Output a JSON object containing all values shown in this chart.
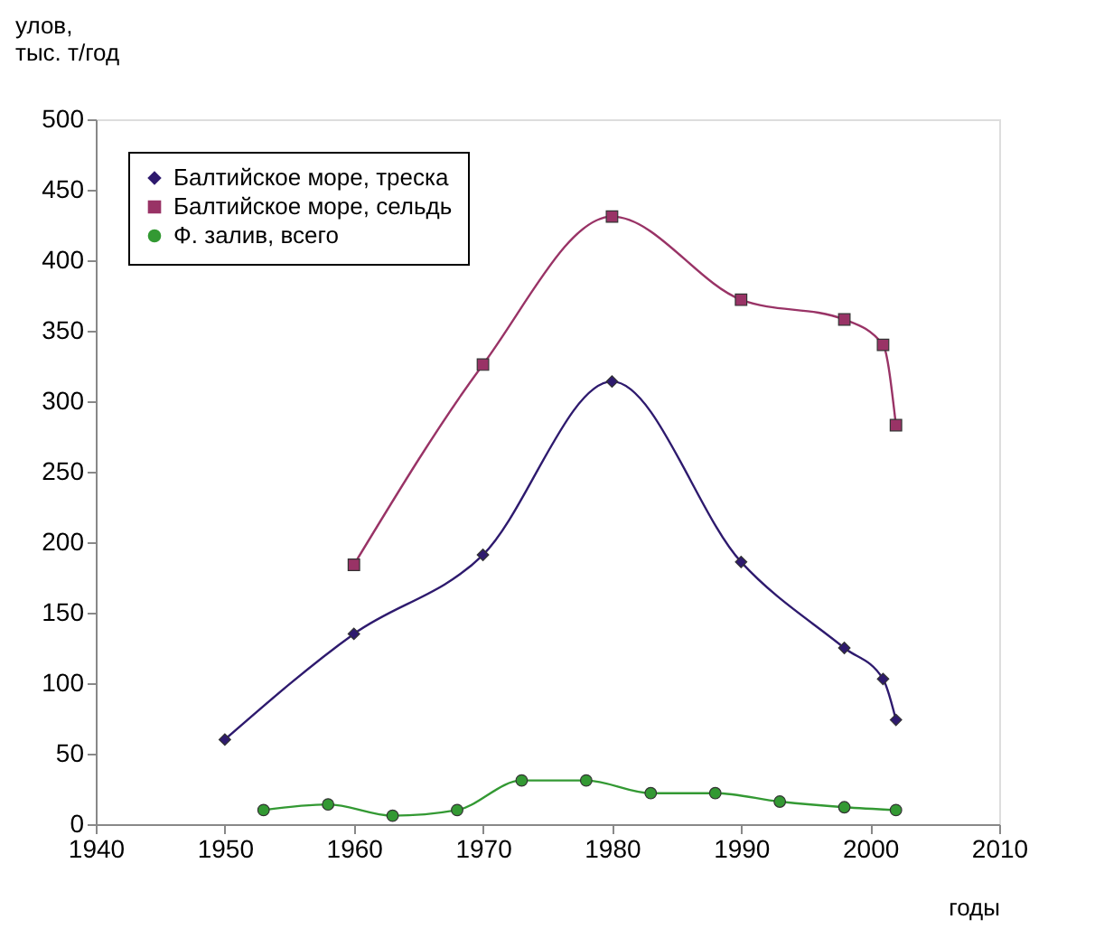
{
  "chart_data": {
    "type": "line",
    "xlabel": "годы",
    "ylabel": "улов,\nтыс. т/год",
    "xlim": [
      1940,
      2010
    ],
    "xticks": [
      1940,
      1950,
      1960,
      1970,
      1980,
      1990,
      2000,
      2010
    ],
    "ylim": [
      0,
      500
    ],
    "yticks": [
      0,
      50,
      100,
      150,
      200,
      250,
      300,
      350,
      400,
      450,
      500
    ],
    "grid": false,
    "legend": "top left",
    "series": [
      {
        "name": "Балтийское море, треска",
        "color": "#2e1a6e",
        "marker": "diamond",
        "x": [
          1950,
          1960,
          1970,
          1980,
          1990,
          1998,
          2001,
          2002
        ],
        "values": [
          60,
          135,
          191,
          314,
          186,
          125,
          103,
          74
        ]
      },
      {
        "name": "Балтийское море, сельдь",
        "color": "#993366",
        "marker": "square",
        "x": [
          1960,
          1970,
          1980,
          1990,
          1998,
          2001,
          2002
        ],
        "values": [
          184,
          326,
          431,
          372,
          358,
          340,
          283
        ]
      },
      {
        "name": "Ф. залив, всего",
        "color": "#339933",
        "marker": "circle",
        "x": [
          1953,
          1958,
          1963,
          1968,
          1973,
          1978,
          1983,
          1988,
          1993,
          1998,
          2002
        ],
        "values": [
          10,
          14,
          6,
          10,
          31,
          31,
          22,
          22,
          16,
          12,
          10
        ]
      }
    ]
  }
}
